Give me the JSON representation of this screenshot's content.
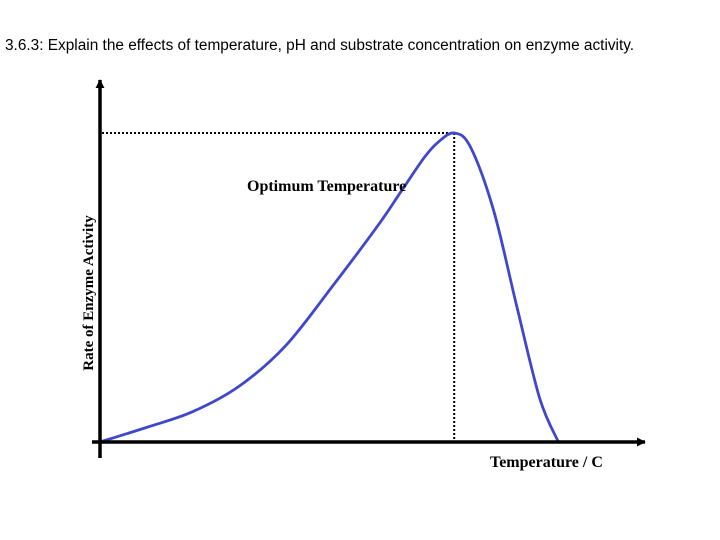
{
  "slide": {
    "heading": "3.6.3: Explain the effects of temperature, pH and substrate concentration on enzyme activity."
  },
  "chart_data": {
    "type": "line",
    "title": "",
    "xlabel": "Temperature /  C",
    "ylabel": "Rate of Enzyme Activity",
    "annotation": "Optimum Temperature",
    "x_ticks": [],
    "y_ticks": [],
    "grid": false,
    "series": [
      {
        "color": "#3f48cc",
        "points": [
          [
            0.0,
            0.0
          ],
          [
            0.1,
            0.047
          ],
          [
            0.2,
            0.098
          ],
          [
            0.3,
            0.18
          ],
          [
            0.4,
            0.31
          ],
          [
            0.5,
            0.5
          ],
          [
            0.6,
            0.7
          ],
          [
            0.65,
            0.81
          ],
          [
            0.7,
            0.92
          ],
          [
            0.73,
            0.97
          ],
          [
            0.765,
            1.0
          ],
          [
            0.8,
            0.955
          ],
          [
            0.85,
            0.75
          ],
          [
            0.9,
            0.44
          ],
          [
            0.95,
            0.14
          ],
          [
            0.99,
            0.0
          ]
        ]
      }
    ],
    "optimum": {
      "x": 0.765,
      "y": 1.0
    },
    "colors": {
      "curve": "#3f48cc",
      "axes": "#000000",
      "guide": "#000000"
    }
  }
}
